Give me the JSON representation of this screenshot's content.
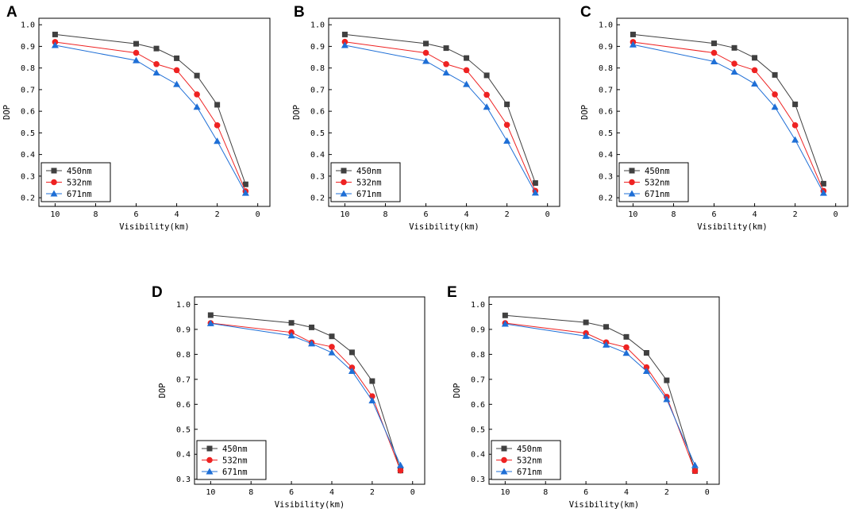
{
  "figure": {
    "panel_labels": [
      "A",
      "B",
      "C",
      "D",
      "E"
    ]
  },
  "chart_data": [
    {
      "panel": "A",
      "type": "line",
      "xlabel": "Visibility(km)",
      "ylabel": "DOP",
      "xlim": [
        10.8,
        -0.6
      ],
      "ylim": [
        0.16,
        1.03
      ],
      "xticks": [
        10,
        8,
        6,
        4,
        2,
        0
      ],
      "yticks": [
        0.2,
        0.3,
        0.4,
        0.5,
        0.6,
        0.7,
        0.8,
        0.9,
        1.0
      ],
      "ytick_labels": [
        "0.2",
        "0.3",
        "0.4",
        "0.5",
        "0.6",
        "0.7",
        "0.8",
        "0.9",
        "1.0"
      ],
      "x": [
        10,
        6,
        5,
        4,
        3,
        2,
        0.6
      ],
      "legend_position": "lower-left",
      "series": [
        {
          "name": "450nm",
          "color": "#404040",
          "marker": "square",
          "values": [
            0.955,
            0.912,
            0.89,
            0.845,
            0.765,
            0.63,
            0.262
          ]
        },
        {
          "name": "532nm",
          "color": "#ee2222",
          "marker": "circle",
          "values": [
            0.92,
            0.87,
            0.818,
            0.79,
            0.678,
            0.535,
            0.23
          ]
        },
        {
          "name": "671nm",
          "color": "#1f6fd6",
          "marker": "triangle",
          "values": [
            0.905,
            0.835,
            0.778,
            0.725,
            0.62,
            0.462,
            0.222
          ]
        }
      ]
    },
    {
      "panel": "B",
      "type": "line",
      "xlabel": "Visibility(km)",
      "ylabel": "DOP",
      "xlim": [
        10.8,
        -0.6
      ],
      "ylim": [
        0.16,
        1.03
      ],
      "xticks": [
        10,
        8,
        6,
        4,
        2,
        0
      ],
      "yticks": [
        0.2,
        0.3,
        0.4,
        0.5,
        0.6,
        0.7,
        0.8,
        0.9,
        1.0
      ],
      "ytick_labels": [
        "0.2",
        "0.3",
        "0.4",
        "0.5",
        "0.6",
        "0.7",
        "0.8",
        "0.9",
        "1.0"
      ],
      "x": [
        10,
        6,
        5,
        4,
        3,
        2,
        0.6
      ],
      "legend_position": "lower-left",
      "series": [
        {
          "name": "450nm",
          "color": "#404040",
          "marker": "square",
          "values": [
            0.955,
            0.913,
            0.892,
            0.846,
            0.766,
            0.632,
            0.268
          ]
        },
        {
          "name": "532nm",
          "color": "#ee2222",
          "marker": "circle",
          "values": [
            0.921,
            0.87,
            0.818,
            0.79,
            0.676,
            0.537,
            0.232
          ]
        },
        {
          "name": "671nm",
          "color": "#1f6fd6",
          "marker": "triangle",
          "values": [
            0.905,
            0.832,
            0.778,
            0.725,
            0.62,
            0.463,
            0.223
          ]
        }
      ]
    },
    {
      "panel": "C",
      "type": "line",
      "xlabel": "Visibility(km)",
      "ylabel": "DOP",
      "xlim": [
        10.8,
        -0.6
      ],
      "ylim": [
        0.16,
        1.03
      ],
      "xticks": [
        10,
        8,
        6,
        4,
        2,
        0
      ],
      "yticks": [
        0.2,
        0.3,
        0.4,
        0.5,
        0.6,
        0.7,
        0.8,
        0.9,
        1.0
      ],
      "ytick_labels": [
        "0.2",
        "0.3",
        "0.4",
        "0.5",
        "0.6",
        "0.7",
        "0.8",
        "0.9",
        "1.0"
      ],
      "x": [
        10,
        6,
        5,
        4,
        3,
        2,
        0.6
      ],
      "legend_position": "lower-left",
      "series": [
        {
          "name": "450nm",
          "color": "#404040",
          "marker": "square",
          "values": [
            0.955,
            0.914,
            0.893,
            0.847,
            0.768,
            0.632,
            0.265
          ]
        },
        {
          "name": "532nm",
          "color": "#ee2222",
          "marker": "circle",
          "values": [
            0.92,
            0.87,
            0.82,
            0.79,
            0.678,
            0.535,
            0.232
          ]
        },
        {
          "name": "671nm",
          "color": "#1f6fd6",
          "marker": "triangle",
          "values": [
            0.908,
            0.83,
            0.782,
            0.727,
            0.62,
            0.468,
            0.222
          ]
        }
      ]
    },
    {
      "panel": "D",
      "type": "line",
      "xlabel": "Visibility(km)",
      "ylabel": "DOP",
      "xlim": [
        10.8,
        -0.6
      ],
      "ylim": [
        0.28,
        1.03
      ],
      "xticks": [
        10,
        8,
        6,
        4,
        2,
        0
      ],
      "yticks": [
        0.3,
        0.4,
        0.5,
        0.6,
        0.7,
        0.8,
        0.9,
        1.0
      ],
      "ytick_labels": [
        "0.3",
        "0.4",
        "0.5",
        "0.6",
        "0.7",
        "0.8",
        "0.9",
        "1.0"
      ],
      "x": [
        10,
        6,
        5,
        4,
        3,
        2,
        0.6
      ],
      "legend_position": "lower-left",
      "series": [
        {
          "name": "450nm",
          "color": "#404040",
          "marker": "square",
          "values": [
            0.957,
            0.926,
            0.908,
            0.872,
            0.808,
            0.693,
            0.335
          ]
        },
        {
          "name": "532nm",
          "color": "#ee2222",
          "marker": "circle",
          "values": [
            0.925,
            0.888,
            0.847,
            0.83,
            0.747,
            0.632,
            0.335
          ]
        },
        {
          "name": "671nm",
          "color": "#1f6fd6",
          "marker": "triangle",
          "values": [
            0.924,
            0.875,
            0.843,
            0.807,
            0.733,
            0.615,
            0.356
          ]
        }
      ]
    },
    {
      "panel": "E",
      "type": "line",
      "xlabel": "Visibility(km)",
      "ylabel": "DOP",
      "xlim": [
        10.8,
        -0.6
      ],
      "ylim": [
        0.28,
        1.03
      ],
      "xticks": [
        10,
        8,
        6,
        4,
        2,
        0
      ],
      "yticks": [
        0.3,
        0.4,
        0.5,
        0.6,
        0.7,
        0.8,
        0.9,
        1.0
      ],
      "ytick_labels": [
        "0.3",
        "0.4",
        "0.5",
        "0.6",
        "0.7",
        "0.8",
        "0.9",
        "1.0"
      ],
      "x": [
        10,
        6,
        5,
        4,
        3,
        2,
        0.6
      ],
      "legend_position": "lower-left",
      "series": [
        {
          "name": "450nm",
          "color": "#404040",
          "marker": "square",
          "values": [
            0.956,
            0.928,
            0.91,
            0.87,
            0.806,
            0.696,
            0.333
          ]
        },
        {
          "name": "532nm",
          "color": "#ee2222",
          "marker": "circle",
          "values": [
            0.925,
            0.885,
            0.848,
            0.828,
            0.748,
            0.63,
            0.333
          ]
        },
        {
          "name": "671nm",
          "color": "#1f6fd6",
          "marker": "triangle",
          "values": [
            0.922,
            0.873,
            0.838,
            0.805,
            0.733,
            0.62,
            0.356
          ]
        }
      ]
    }
  ]
}
